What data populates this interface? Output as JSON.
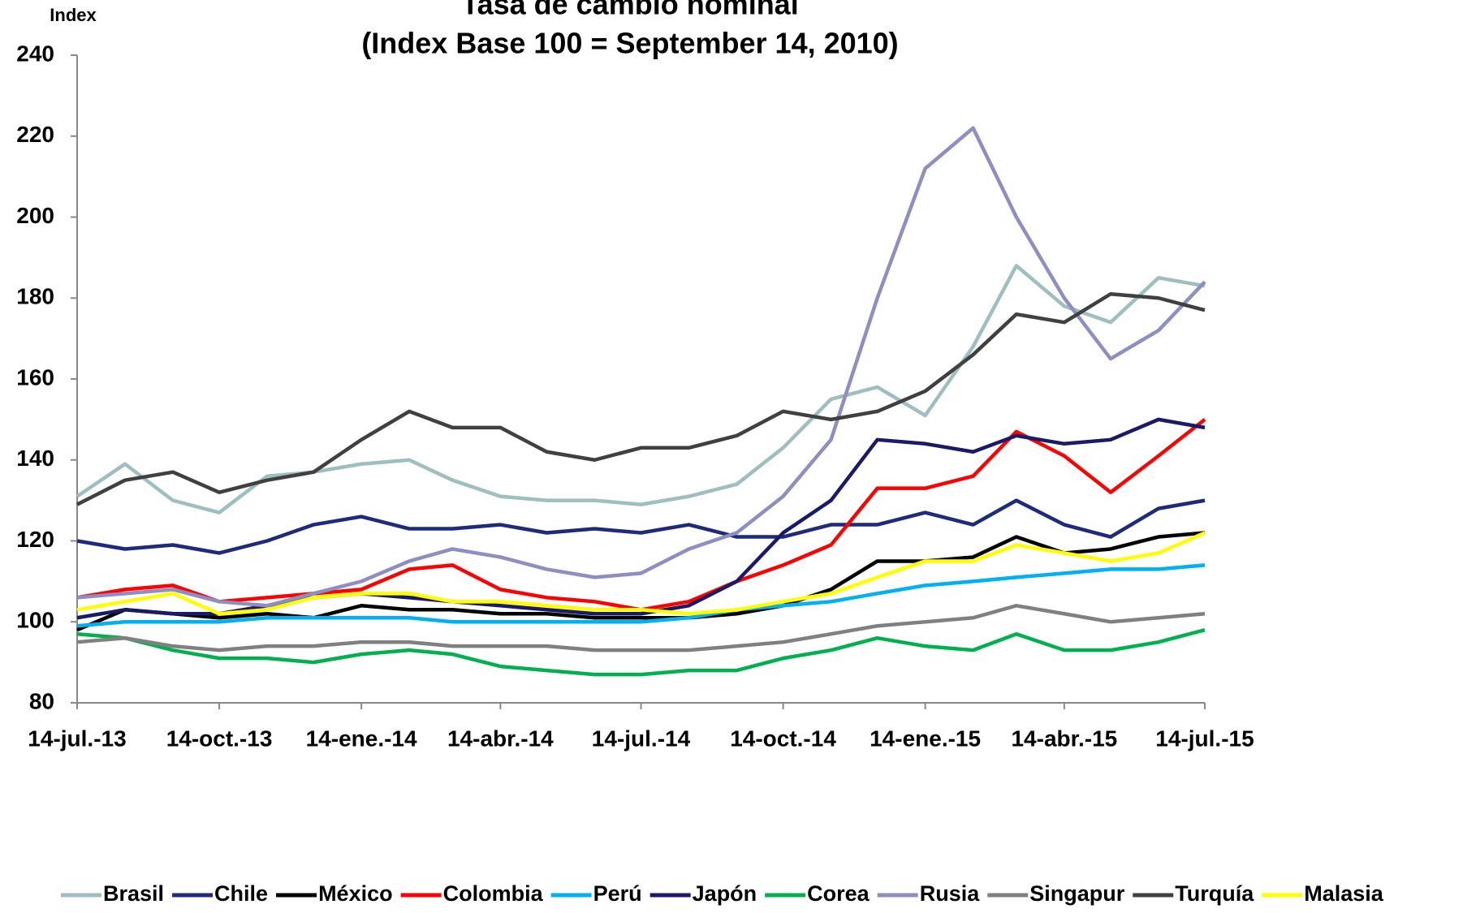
{
  "chart_data": {
    "type": "line",
    "title": "Tasa de cambio nominal",
    "subtitle": "(Index Base 100 = September 14, 2010)",
    "y_label": "Index",
    "x": [
      "2013-07-14",
      "2013-08-14",
      "2013-09-14",
      "2013-10-14",
      "2013-11-14",
      "2013-12-14",
      "2014-01-14",
      "2014-02-14",
      "2014-03-14",
      "2014-04-14",
      "2014-05-14",
      "2014-06-14",
      "2014-07-14",
      "2014-08-14",
      "2014-09-14",
      "2014-10-14",
      "2014-11-14",
      "2014-12-14",
      "2015-01-14",
      "2015-02-14",
      "2015-03-14",
      "2015-04-14",
      "2015-05-14",
      "2015-06-14",
      "2015-07-14"
    ],
    "xlim": [
      "2013-07-14",
      "2015-07-14"
    ],
    "xticks": [
      {
        "value": "2013-07-14",
        "label": "14-jul.-13"
      },
      {
        "value": "2013-10-14",
        "label": "14-oct.-13"
      },
      {
        "value": "2014-01-14",
        "label": "14-ene.-14"
      },
      {
        "value": "2014-04-14",
        "label": "14-abr.-14"
      },
      {
        "value": "2014-07-14",
        "label": "14-jul.-14"
      },
      {
        "value": "2014-10-14",
        "label": "14-oct.-14"
      },
      {
        "value": "2015-01-14",
        "label": "14-ene.-15"
      },
      {
        "value": "2015-04-14",
        "label": "14-abr.-15"
      },
      {
        "value": "2015-07-14",
        "label": "14-jul.-15"
      }
    ],
    "ylim": [
      80,
      240
    ],
    "yticks": [
      80,
      100,
      120,
      140,
      160,
      180,
      200,
      220,
      240
    ],
    "grid": false,
    "legend": "bottom",
    "series": [
      {
        "name": "Brasil",
        "color": "#9fbfbf",
        "values": [
          131,
          139,
          130,
          127,
          136,
          137,
          139,
          140,
          135,
          131,
          130,
          130,
          129,
          131,
          134,
          143,
          155,
          158,
          151,
          168,
          188,
          178,
          174,
          185,
          183
        ]
      },
      {
        "name": "Chile",
        "color": "#1f2a7a",
        "values": [
          120,
          118,
          119,
          117,
          120,
          124,
          126,
          123,
          123,
          124,
          122,
          123,
          122,
          124,
          121,
          121,
          124,
          124,
          127,
          124,
          130,
          124,
          121,
          128,
          130
        ]
      },
      {
        "name": "México",
        "color": "#000000",
        "values": [
          98,
          103,
          102,
          101,
          102,
          101,
          104,
          103,
          103,
          102,
          102,
          101,
          101,
          101,
          102,
          104,
          108,
          115,
          115,
          116,
          121,
          117,
          118,
          121,
          122
        ]
      },
      {
        "name": "Colombia",
        "color": "#ff0000",
        "values": [
          106,
          108,
          109,
          105,
          106,
          107,
          108,
          113,
          114,
          108,
          106,
          105,
          103,
          105,
          110,
          114,
          119,
          133,
          133,
          136,
          147,
          141,
          132,
          141,
          150
        ]
      },
      {
        "name": "Perú",
        "color": "#00b0f0",
        "values": [
          99,
          100,
          100,
          100,
          101,
          101,
          101,
          101,
          100,
          100,
          100,
          100,
          100,
          101,
          103,
          104,
          105,
          107,
          109,
          110,
          111,
          112,
          113,
          113,
          114
        ]
      },
      {
        "name": "Japón",
        "color": "#1a1a66",
        "values": [
          101,
          103,
          102,
          102,
          104,
          106,
          107,
          106,
          105,
          104,
          103,
          102,
          102,
          104,
          110,
          122,
          130,
          145,
          144,
          142,
          146,
          144,
          145,
          150,
          148
        ]
      },
      {
        "name": "Corea",
        "color": "#00b050",
        "values": [
          97,
          96,
          93,
          91,
          91,
          90,
          92,
          93,
          92,
          89,
          88,
          87,
          87,
          88,
          88,
          91,
          93,
          96,
          94,
          93,
          97,
          93,
          93,
          95,
          98
        ]
      },
      {
        "name": "Rusia",
        "color": "#8e8ec0",
        "values": [
          106,
          107,
          108,
          105,
          104,
          107,
          110,
          115,
          118,
          116,
          113,
          111,
          112,
          118,
          122,
          131,
          145,
          180,
          212,
          222,
          200,
          180,
          165,
          172,
          184
        ]
      },
      {
        "name": "Singapur",
        "color": "#808080",
        "values": [
          95,
          96,
          94,
          93,
          94,
          94,
          95,
          95,
          94,
          94,
          94,
          93,
          93,
          93,
          94,
          95,
          97,
          99,
          100,
          101,
          104,
          102,
          100,
          101,
          102
        ]
      },
      {
        "name": "Turquía",
        "color": "#404040",
        "values": [
          129,
          135,
          137,
          132,
          135,
          137,
          145,
          152,
          148,
          148,
          142,
          140,
          143,
          143,
          146,
          152,
          150,
          152,
          157,
          166,
          176,
          174,
          181,
          180,
          177
        ]
      },
      {
        "name": "Malasia",
        "color": "#ffff00",
        "values": [
          103,
          105,
          107,
          102,
          103,
          106,
          107,
          107,
          105,
          105,
          104,
          103,
          103,
          102,
          103,
          105,
          107,
          111,
          115,
          115,
          119,
          117,
          115,
          117,
          122
        ]
      }
    ]
  }
}
